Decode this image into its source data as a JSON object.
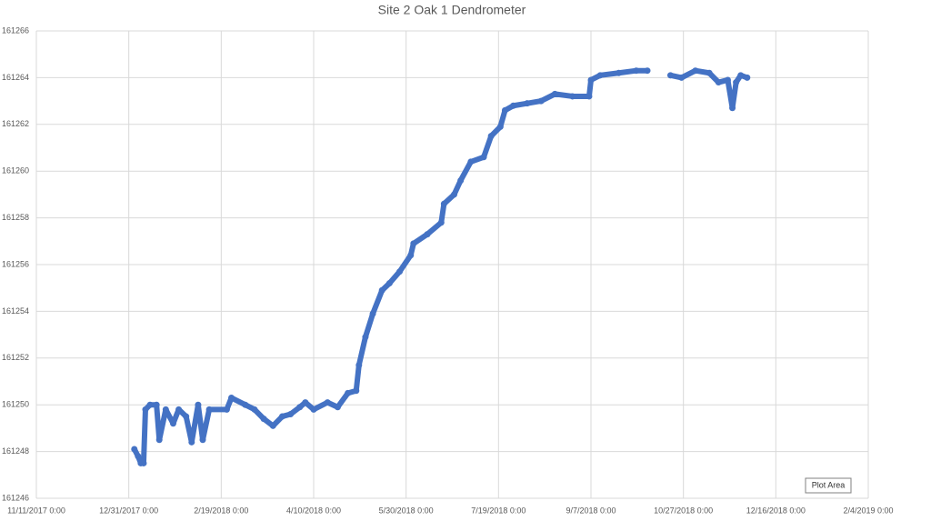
{
  "chart_data": {
    "type": "scatter",
    "title": "Site 2 Oak 1 Dendrometer",
    "color": "#4472c4",
    "grid": true,
    "tooltip": "Plot Area",
    "xlim": [
      43050,
      43500
    ],
    "xticks": [
      {
        "value": 43050,
        "label": "11/11/2017 0:00"
      },
      {
        "value": 43100,
        "label": "12/31/2017 0:00"
      },
      {
        "value": 43150,
        "label": "2/19/2018 0:00"
      },
      {
        "value": 43200,
        "label": "4/10/2018 0:00"
      },
      {
        "value": 43250,
        "label": "5/30/2018 0:00"
      },
      {
        "value": 43300,
        "label": "7/19/2018 0:00"
      },
      {
        "value": 43350,
        "label": "9/7/2018 0:00"
      },
      {
        "value": 43400,
        "label": "10/27/2018 0:00"
      },
      {
        "value": 43450,
        "label": "12/16/2018 0:00"
      },
      {
        "value": 43500,
        "label": "2/4/2019 0:00"
      }
    ],
    "ylim": [
      161246,
      161266
    ],
    "yticks": [
      161246,
      161248,
      161250,
      161252,
      161254,
      161256,
      161258,
      161260,
      161262,
      161264,
      161266
    ],
    "series": [
      {
        "color": "#4472c4",
        "x": [
          43103,
          43105,
          43106.5,
          43108,
          43109,
          43111.5,
          43115,
          43116.5,
          43120,
          43124,
          43127,
          43131,
          43134,
          43137.5,
          43140,
          43143.5,
          43153,
          43155.5,
          43163,
          43168,
          43173,
          43178,
          43183,
          43187.5,
          43192.5,
          43195.5,
          43200,
          43207.5,
          43213,
          43218.5,
          43223,
          43224.5,
          43228,
          43232,
          43237,
          43241,
          43246.5,
          43252.5,
          43254,
          43261.5,
          43269,
          43270.5,
          43276,
          43279.5,
          43285,
          43292,
          43296,
          43301,
          43303.5,
          43308,
          43315.5,
          43323,
          43330.5,
          43340,
          43349,
          43350,
          43355,
          43365,
          43374.5,
          43380.5
        ],
        "values": [
          161248.1,
          161247.8,
          161247.5,
          161247.5,
          161249.8,
          161250,
          161250,
          161248.5,
          161249.8,
          161249.2,
          161249.8,
          161249.5,
          161248.4,
          161250,
          161248.5,
          161249.8,
          161249.8,
          161250.3,
          161250,
          161249.8,
          161249.4,
          161249.1,
          161249.5,
          161249.6,
          161249.9,
          161250.1,
          161249.8,
          161250.1,
          161249.9,
          161250.5,
          161250.6,
          161251.7,
          161252.9,
          161253.9,
          161254.9,
          161255.2,
          161255.7,
          161256.4,
          161256.9,
          161257.3,
          161257.8,
          161258.6,
          161259,
          161259.6,
          161260.4,
          161260.6,
          161261.5,
          161261.9,
          161262.6,
          161262.8,
          161262.9,
          161263,
          161263.3,
          161263.2,
          161263.2,
          161263.9,
          161264.1,
          161264.2,
          161264.3,
          161264.3
        ]
      },
      {
        "color": "#4472c4",
        "x": [
          43393,
          43399,
          43406.5,
          43414,
          43419,
          43424,
          43426.5,
          43428.5,
          43431,
          43434.5
        ],
        "values": [
          161264.1,
          161264,
          161264.3,
          161264.2,
          161263.8,
          161263.9,
          161262.7,
          161263.8,
          161264.1,
          161264
        ]
      }
    ]
  }
}
